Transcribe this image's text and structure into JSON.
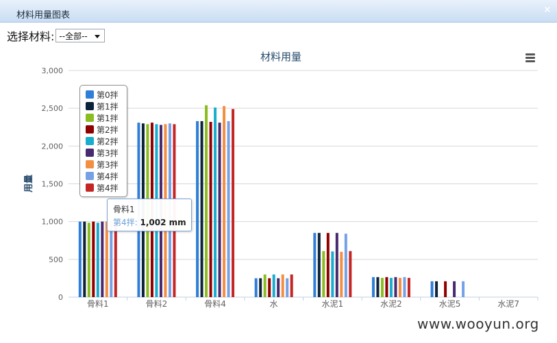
{
  "window": {
    "title": "材料用量图表",
    "close_icon": "close-icon"
  },
  "filter": {
    "label": "选择材料:",
    "selected": "--全部--"
  },
  "colors": [
    "#2f7ed8",
    "#0d233a",
    "#8bbc21",
    "#910000",
    "#1aadce",
    "#492970",
    "#f28f43",
    "#77a1e5",
    "#c42525"
  ],
  "chart_data": {
    "type": "bar",
    "title": "材料用量",
    "xlabel": "",
    "ylabel": "用量",
    "ylim": [
      0,
      3000
    ],
    "yticks": [
      "0",
      "500",
      "1,000",
      "1,500",
      "2,000",
      "2,500",
      "3,000"
    ],
    "grid": true,
    "legend_position": "top-left",
    "categories": [
      "骨料1",
      "骨料2",
      "骨料4",
      "水",
      "水泥1",
      "水泥2",
      "水泥5",
      "水泥7"
    ],
    "series": [
      {
        "name": "第0拌",
        "values": [
          1000,
          2310,
          2330,
          250,
          850,
          265,
          210,
          0
        ]
      },
      {
        "name": "第1拌",
        "values": [
          1000,
          2300,
          2330,
          250,
          850,
          265,
          210,
          0
        ]
      },
      {
        "name": "第1拌",
        "values": [
          985,
          2290,
          2540,
          300,
          610,
          255,
          0,
          0
        ]
      },
      {
        "name": "第2拌",
        "values": [
          1000,
          2310,
          2320,
          250,
          850,
          265,
          210,
          0
        ]
      },
      {
        "name": "第2拌",
        "values": [
          985,
          2290,
          2510,
          300,
          605,
          255,
          0,
          0
        ]
      },
      {
        "name": "第3拌",
        "values": [
          1000,
          2280,
          2310,
          250,
          850,
          265,
          210,
          0
        ]
      },
      {
        "name": "第3拌",
        "values": [
          1000,
          2290,
          2530,
          300,
          600,
          255,
          0,
          0
        ]
      },
      {
        "name": "第4拌",
        "values": [
          1002,
          2300,
          2330,
          250,
          840,
          265,
          210,
          0
        ]
      },
      {
        "name": "第4拌",
        "values": [
          1002,
          2290,
          2490,
          300,
          610,
          255,
          0,
          0
        ]
      }
    ],
    "tooltip": {
      "category": "骨料1",
      "series": "第4拌:",
      "value": "1,002 mm"
    }
  },
  "watermark": "www.wooyun.org"
}
